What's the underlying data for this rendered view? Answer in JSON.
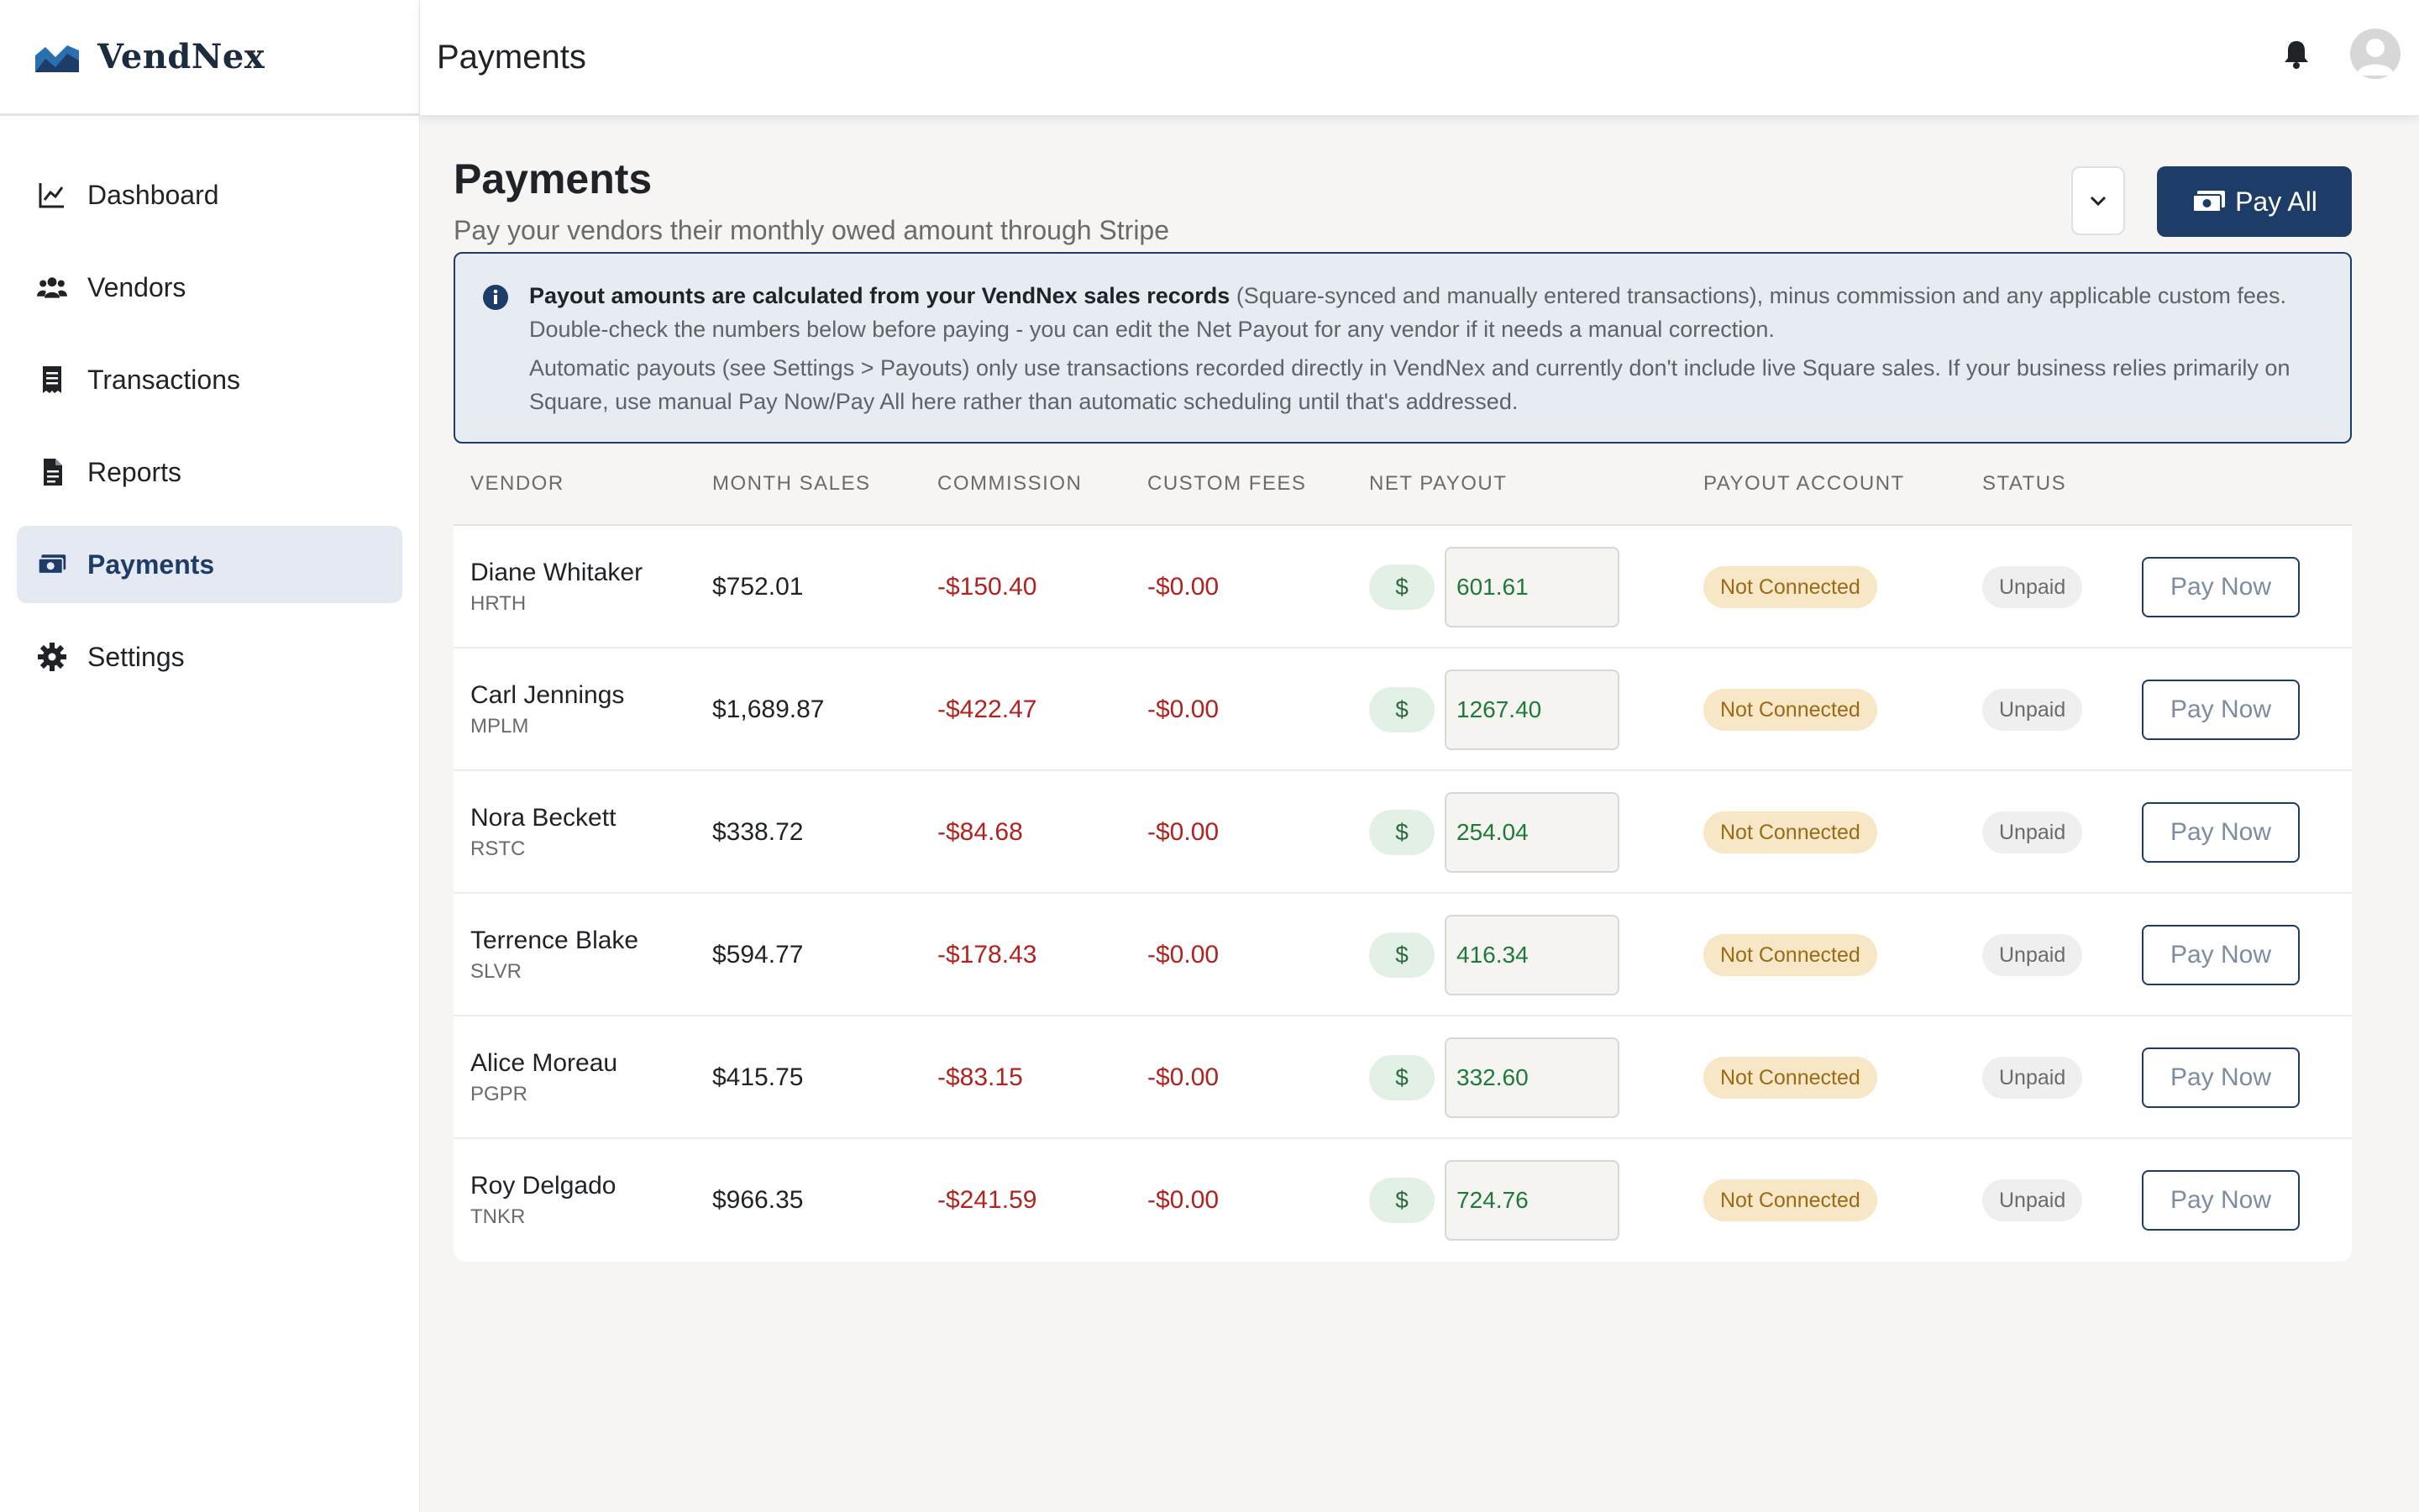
{
  "app": {
    "name": "VendNex"
  },
  "sidebar": {
    "items": [
      {
        "label": "Dashboard",
        "icon": "chart-line-icon",
        "active": false
      },
      {
        "label": "Vendors",
        "icon": "users-icon",
        "active": false
      },
      {
        "label": "Transactions",
        "icon": "receipt-icon",
        "active": false
      },
      {
        "label": "Reports",
        "icon": "document-icon",
        "active": false
      },
      {
        "label": "Payments",
        "icon": "money-bill-icon",
        "active": true
      },
      {
        "label": "Settings",
        "icon": "gear-icon",
        "active": false
      }
    ]
  },
  "topbar": {
    "title": "Payments"
  },
  "page": {
    "title": "Payments",
    "subtitle": "Pay your vendors their monthly owed amount through Stripe",
    "pay_all_label": "Pay All"
  },
  "info": {
    "bold": "Payout amounts are calculated from your VendNex sales records",
    "rest": " (Square-synced and manually entered transactions), minus commission and any applicable custom fees. Double-check the numbers below before paying - you can edit the Net Payout for any vendor if it needs a manual correction.",
    "p2": "Automatic payouts (see Settings > Payouts) only use transactions recorded directly in VendNex and currently don't include live Square sales. If your business relies primarily on Square, use manual Pay Now/Pay All here rather than automatic scheduling until that's addressed."
  },
  "table": {
    "headers": {
      "vendor": "VENDOR",
      "month_sales": "MONTH SALES",
      "commission": "COMMISSION",
      "custom_fees": "CUSTOM FEES",
      "net_payout": "NET PAYOUT",
      "payout_account": "PAYOUT ACCOUNT",
      "status": "STATUS"
    },
    "currency_symbol": "$",
    "pay_now_label": "Pay Now",
    "rows": [
      {
        "name": "Diane Whitaker",
        "code": "HRTH",
        "sales": "$752.01",
        "commission": "-$150.40",
        "fees": "-$0.00",
        "net": "601.61",
        "account": "Not Connected",
        "status": "Unpaid"
      },
      {
        "name": "Carl Jennings",
        "code": "MPLM",
        "sales": "$1,689.87",
        "commission": "-$422.47",
        "fees": "-$0.00",
        "net": "1267.40",
        "account": "Not Connected",
        "status": "Unpaid"
      },
      {
        "name": "Nora Beckett",
        "code": "RSTC",
        "sales": "$338.72",
        "commission": "-$84.68",
        "fees": "-$0.00",
        "net": "254.04",
        "account": "Not Connected",
        "status": "Unpaid"
      },
      {
        "name": "Terrence Blake",
        "code": "SLVR",
        "sales": "$594.77",
        "commission": "-$178.43",
        "fees": "-$0.00",
        "net": "416.34",
        "account": "Not Connected",
        "status": "Unpaid"
      },
      {
        "name": "Alice Moreau",
        "code": "PGPR",
        "sales": "$415.75",
        "commission": "-$83.15",
        "fees": "-$0.00",
        "net": "332.60",
        "account": "Not Connected",
        "status": "Unpaid"
      },
      {
        "name": "Roy Delgado",
        "code": "TNKR",
        "sales": "$966.35",
        "commission": "-$241.59",
        "fees": "-$0.00",
        "net": "724.76",
        "account": "Not Connected",
        "status": "Unpaid"
      }
    ]
  },
  "colors": {
    "accent": "#1d3c67",
    "negative": "#b0231e",
    "positive": "#1f7a3a",
    "warning_badge": "#f7e7c6"
  }
}
